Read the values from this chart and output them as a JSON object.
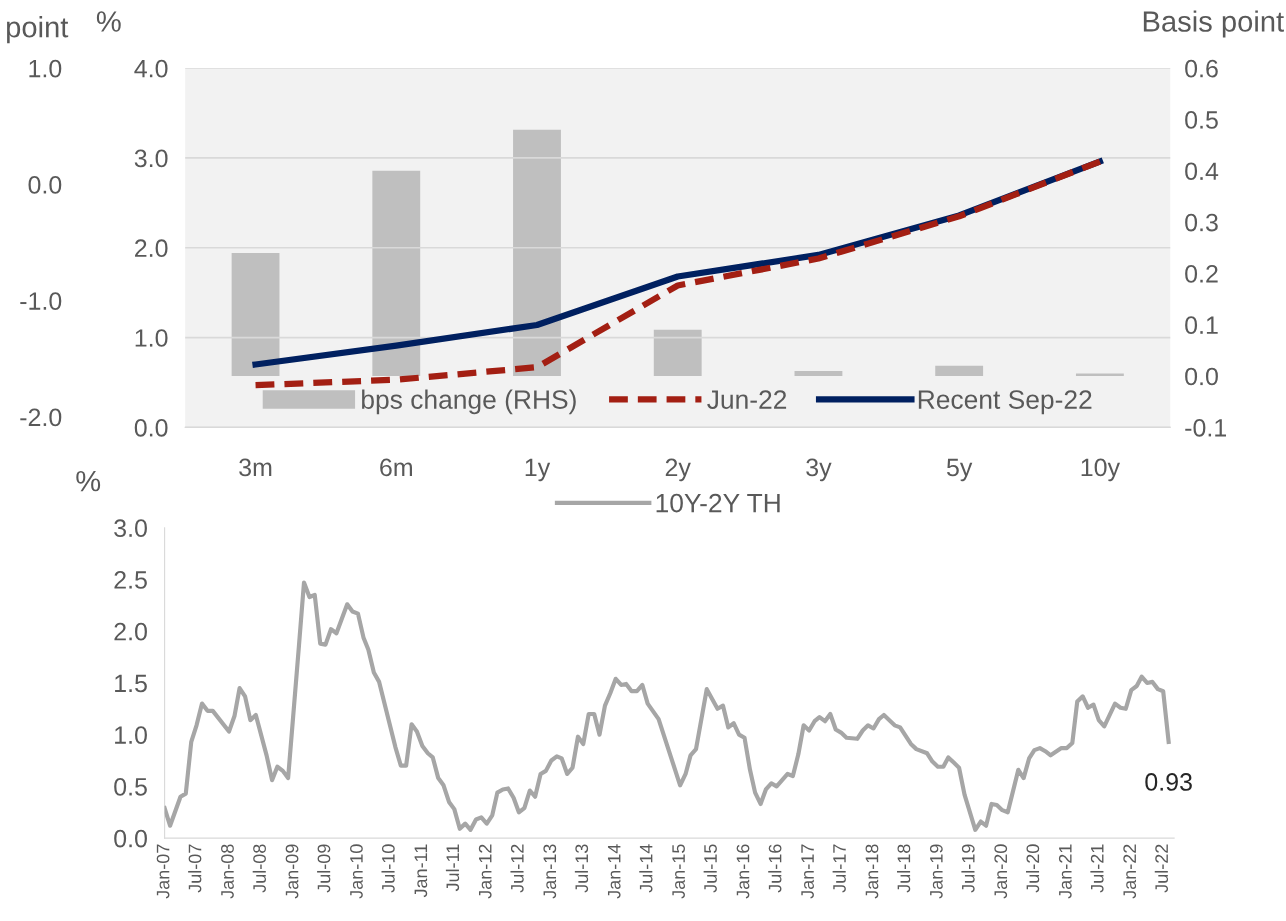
{
  "chart_data": [
    {
      "type": "bar",
      "categories": [
        "3m",
        "6m",
        "1y",
        "2y",
        "3y",
        "5y",
        "10y"
      ],
      "series": [
        {
          "name": "bps change (RHS)",
          "type": "bar",
          "axis": "y2",
          "color": "#bfbfbf",
          "values": [
            0.24,
            0.4,
            0.48,
            0.09,
            0.01,
            0.02,
            0.005
          ]
        },
        {
          "name": "Jun-22",
          "type": "line",
          "line_style": "dashed",
          "color": "#a31f13",
          "values": [
            0.47,
            0.53,
            0.67,
            1.58,
            1.88,
            2.35,
            2.96
          ]
        },
        {
          "name": "Recent Sep-22",
          "type": "line",
          "line_style": "solid",
          "color": "#002060",
          "values": [
            0.7,
            0.91,
            1.14,
            1.68,
            1.92,
            2.36,
            2.96
          ]
        }
      ],
      "ylabel": "%",
      "y2label": "Basis point",
      "y3label": "point",
      "ylim": [
        0,
        4
      ],
      "yticks": [
        {
          "value": 0,
          "label": "0.0"
        },
        {
          "value": 1,
          "label": "1.0"
        },
        {
          "value": 2,
          "label": "2.0"
        },
        {
          "value": 3,
          "label": "3.0"
        },
        {
          "value": 4,
          "label": "4.0"
        }
      ],
      "y2lim": [
        -0.1,
        0.6
      ],
      "y2ticks": [
        -0.1,
        {
          "value": 0,
          "label": "0.0"
        },
        0.1,
        0.2,
        0.3,
        0.4,
        0.5,
        0.6
      ],
      "y3lim": [
        -2.09,
        1.0
      ],
      "y3ticks": [
        {
          "value": -2,
          "label": "-2.0"
        },
        {
          "value": -1,
          "label": "-1.0"
        },
        {
          "value": 0,
          "label": "0.0"
        },
        {
          "value": 1,
          "label": "1.0"
        }
      ],
      "grid": "y",
      "legend": "bottom"
    },
    {
      "type": "line",
      "x": [
        "2007-01",
        "2007-02",
        "2007-04",
        "2007-05",
        "2007-06",
        "2007-07",
        "2007-08",
        "2007-09",
        "2007-10",
        "2008-01",
        "2008-02",
        "2008-03",
        "2008-04",
        "2008-05",
        "2008-06",
        "2008-08",
        "2008-09",
        "2008-10",
        "2008-11",
        "2008-12",
        "2009-02",
        "2009-03",
        "2009-04",
        "2009-05",
        "2009-06",
        "2009-07",
        "2009-08",
        "2009-09",
        "2009-11",
        "2009-12",
        "2010-01",
        "2010-02",
        "2010-03",
        "2010-04",
        "2010-05",
        "2010-08",
        "2010-09",
        "2010-10",
        "2010-11",
        "2010-12",
        "2011-01",
        "2011-02",
        "2011-03",
        "2011-04",
        "2011-05",
        "2011-06",
        "2011-07",
        "2011-08",
        "2011-09",
        "2011-10",
        "2011-11",
        "2011-12",
        "2012-01",
        "2012-02",
        "2012-03",
        "2012-04",
        "2012-05",
        "2012-06",
        "2012-07",
        "2012-08",
        "2012-09",
        "2012-10",
        "2012-11",
        "2012-12",
        "2013-01",
        "2013-02",
        "2013-03",
        "2013-04",
        "2013-05",
        "2013-06",
        "2013-07",
        "2013-08",
        "2013-09",
        "2013-10",
        "2013-11",
        "2013-12",
        "2014-01",
        "2014-02",
        "2014-03",
        "2014-04",
        "2014-05",
        "2014-06",
        "2014-07",
        "2014-09",
        "2015-01",
        "2015-02",
        "2015-03",
        "2015-04",
        "2015-06",
        "2015-08",
        "2015-09",
        "2015-10",
        "2015-11",
        "2015-12",
        "2016-01",
        "2016-02",
        "2016-03",
        "2016-04",
        "2016-05",
        "2016-06",
        "2016-07",
        "2016-09",
        "2016-10",
        "2016-11",
        "2016-12",
        "2017-01",
        "2017-02",
        "2017-03",
        "2017-04",
        "2017-05",
        "2017-06",
        "2017-07",
        "2017-08",
        "2017-10",
        "2017-11",
        "2017-12",
        "2018-01",
        "2018-02",
        "2018-03",
        "2018-04",
        "2018-05",
        "2018-06",
        "2018-08",
        "2018-09",
        "2018-11",
        "2018-12",
        "2019-01",
        "2019-02",
        "2019-03",
        "2019-04",
        "2019-05",
        "2019-06",
        "2019-08",
        "2019-09",
        "2019-10",
        "2019-11",
        "2019-12",
        "2020-01",
        "2020-02",
        "2020-04",
        "2020-05",
        "2020-06",
        "2020-07",
        "2020-08",
        "2020-09",
        "2020-10",
        "2020-12",
        "2021-01",
        "2021-02",
        "2021-03",
        "2021-04",
        "2021-05",
        "2021-06",
        "2021-07",
        "2021-08",
        "2021-10",
        "2021-11",
        "2021-12",
        "2022-01",
        "2022-02",
        "2022-03",
        "2022-04",
        "2022-05",
        "2022-06",
        "2022-07",
        "2022-08"
      ],
      "series": [
        {
          "name": "10Y-2Y TH",
          "color": "#a6a6a6",
          "values": [
            0.29,
            0.12,
            0.4,
            0.43,
            0.93,
            1.09,
            1.3,
            1.23,
            1.23,
            1.03,
            1.18,
            1.45,
            1.37,
            1.14,
            1.19,
            0.8,
            0.56,
            0.69,
            0.65,
            0.58,
            1.87,
            2.47,
            2.33,
            2.35,
            1.88,
            1.87,
            2.02,
            1.98,
            2.26,
            2.19,
            2.17,
            1.94,
            1.82,
            1.6,
            1.51,
            0.88,
            0.7,
            0.7,
            1.1,
            1.03,
            0.89,
            0.82,
            0.78,
            0.58,
            0.51,
            0.35,
            0.28,
            0.09,
            0.14,
            0.08,
            0.18,
            0.2,
            0.14,
            0.22,
            0.44,
            0.47,
            0.48,
            0.39,
            0.25,
            0.29,
            0.46,
            0.4,
            0.62,
            0.65,
            0.75,
            0.79,
            0.77,
            0.62,
            0.68,
            0.98,
            0.91,
            1.2,
            1.2,
            1.0,
            1.28,
            1.4,
            1.54,
            1.48,
            1.49,
            1.42,
            1.42,
            1.48,
            1.3,
            1.15,
            0.51,
            0.62,
            0.8,
            0.86,
            1.44,
            1.25,
            1.28,
            1.07,
            1.11,
            1.0,
            0.97,
            0.66,
            0.44,
            0.33,
            0.47,
            0.53,
            0.5,
            0.62,
            0.6,
            0.81,
            1.09,
            1.04,
            1.13,
            1.17,
            1.13,
            1.2,
            1.05,
            1.02,
            0.97,
            0.96,
            1.04,
            1.09,
            1.06,
            1.15,
            1.19,
            1.14,
            1.09,
            1.07,
            0.91,
            0.86,
            0.82,
            0.74,
            0.69,
            0.69,
            0.78,
            0.73,
            0.68,
            0.42,
            0.08,
            0.16,
            0.12,
            0.33,
            0.32,
            0.27,
            0.25,
            0.66,
            0.58,
            0.77,
            0.85,
            0.87,
            0.84,
            0.8,
            0.87,
            0.87,
            0.92,
            1.32,
            1.37,
            1.26,
            1.29,
            1.14,
            1.08,
            1.3,
            1.26,
            1.25,
            1.43,
            1.47,
            1.56,
            1.5,
            1.51,
            1.44,
            1.42,
            0.93
          ]
        }
      ],
      "ylabel": "%",
      "ylim": [
        0,
        3
      ],
      "yticks": [
        {
          "value": 0,
          "label": "0.0"
        },
        0.5,
        {
          "value": 1,
          "label": "1.0"
        },
        1.5,
        {
          "value": 2,
          "label": "2.0"
        },
        2.5,
        {
          "value": 3,
          "label": "3.0"
        }
      ],
      "xlim": [
        "2007-01",
        "2022-09"
      ],
      "xticks": [
        {
          "value": "2007-01",
          "label": "Jan-07"
        },
        {
          "value": "2007-07",
          "label": "Jul-07"
        },
        {
          "value": "2008-01",
          "label": "Jan-08"
        },
        {
          "value": "2008-07",
          "label": "Jul-08"
        },
        {
          "value": "2009-01",
          "label": "Jan-09"
        },
        {
          "value": "2009-07",
          "label": "Jul-09"
        },
        {
          "value": "2010-01",
          "label": "Jan-10"
        },
        {
          "value": "2010-07",
          "label": "Jul-10"
        },
        {
          "value": "2011-01",
          "label": "Jan-11"
        },
        {
          "value": "2011-07",
          "label": "Jul-11"
        },
        {
          "value": "2012-01",
          "label": "Jan-12"
        },
        {
          "value": "2012-07",
          "label": "Jul-12"
        },
        {
          "value": "2013-01",
          "label": "Jan-13"
        },
        {
          "value": "2013-07",
          "label": "Jul-13"
        },
        {
          "value": "2014-01",
          "label": "Jan-14"
        },
        {
          "value": "2014-07",
          "label": "Jul-14"
        },
        {
          "value": "2015-01",
          "label": "Jan-15"
        },
        {
          "value": "2015-07",
          "label": "Jul-15"
        },
        {
          "value": "2016-01",
          "label": "Jan-16"
        },
        {
          "value": "2016-07",
          "label": "Jul-16"
        },
        {
          "value": "2017-01",
          "label": "Jan-17"
        },
        {
          "value": "2017-07",
          "label": "Jul-17"
        },
        {
          "value": "2018-01",
          "label": "Jan-18"
        },
        {
          "value": "2018-07",
          "label": "Jul-18"
        },
        {
          "value": "2019-01",
          "label": "Jan-19"
        },
        {
          "value": "2019-07",
          "label": "Jul-19"
        },
        {
          "value": "2020-01",
          "label": "Jan-20"
        },
        {
          "value": "2020-07",
          "label": "Jul-20"
        },
        {
          "value": "2021-01",
          "label": "Jan-21"
        },
        {
          "value": "2021-07",
          "label": "Jul-21"
        },
        {
          "value": "2022-01",
          "label": "Jan-22"
        },
        {
          "value": "2022-07",
          "label": "Jul-22"
        }
      ],
      "annotations": [
        {
          "text": "0.93",
          "x": "2022-08",
          "y": 0.93
        }
      ],
      "legend": "top"
    }
  ]
}
